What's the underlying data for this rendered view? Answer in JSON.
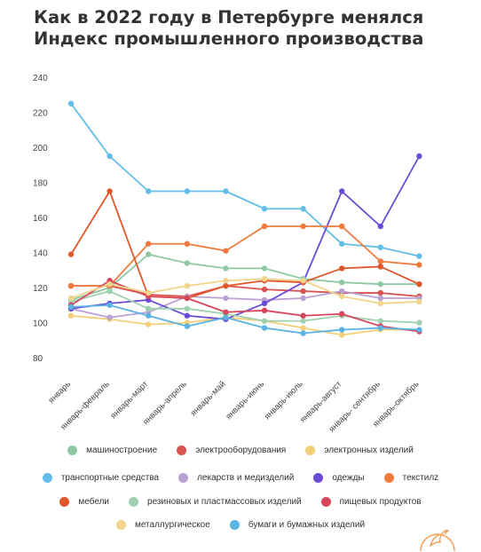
{
  "title": "Как в 2022 году в Петербурге менялся Индекс промышленного производства",
  "chart_data": {
    "type": "line",
    "categories": [
      "январь",
      "январь-февраль",
      "январь-март",
      "январь-апрель",
      "январь-май",
      "январь-июнь",
      "январь-июль",
      "январь-август",
      "январь- сентябрь",
      "январь-октябрь"
    ],
    "ylim": [
      80,
      240
    ],
    "yticks": [
      80,
      100,
      120,
      140,
      160,
      180,
      200,
      220,
      240
    ],
    "grid": false,
    "legend_position": "bottom",
    "series": [
      {
        "name": "машиностроение",
        "color": "#8fc9a3",
        "values": [
          118,
          125,
          144,
          139,
          136,
          136,
          130,
          128,
          127,
          127
        ]
      },
      {
        "name": "электрооборудования",
        "color": "#d9534f",
        "values": [
          126,
          126,
          121,
          120,
          126,
          124,
          123,
          122,
          122,
          120
        ]
      },
      {
        "name": "электронных изделий",
        "color": "#f3cf7a",
        "values": [
          109,
          107,
          104,
          105,
          108,
          106,
          102,
          98,
          101,
          101
        ]
      },
      {
        "name": "транспортные средства",
        "color": "#63bde6",
        "values": [
          230,
          200,
          180,
          180,
          180,
          170,
          170,
          150,
          148,
          143
        ]
      },
      {
        "name": "лекарств и медизделий",
        "color": "#b9a2d2",
        "values": [
          113,
          108,
          111,
          120,
          119,
          118,
          119,
          123,
          119,
          119
        ]
      },
      {
        "name": "одежды",
        "color": "#6a4bd6",
        "values": [
          113,
          116,
          118,
          109,
          107,
          116,
          128,
          180,
          160,
          200
        ]
      },
      {
        "name": "текстилz",
        "color": "#f07a3c",
        "values": [
          126,
          126,
          150,
          150,
          146,
          160,
          160,
          160,
          140,
          138
        ]
      },
      {
        "name": "мебели",
        "color": "#e2562c",
        "values": [
          144,
          180,
          120,
          119,
          126,
          129,
          128,
          136,
          137,
          127
        ]
      },
      {
        "name": "резиновых и пластмассовых изделий",
        "color": "#9fd0b0",
        "values": [
          117,
          123,
          113,
          113,
          110,
          106,
          106,
          109,
          106,
          105
        ]
      },
      {
        "name": "пищевых продуктов",
        "color": "#d7475c",
        "values": [
          115,
          129,
          120,
          119,
          111,
          112,
          109,
          110,
          103,
          100
        ]
      },
      {
        "name": "металлургическое",
        "color": "#f1d38a",
        "values": [
          119,
          127,
          122,
          126,
          129,
          130,
          129,
          120,
          116,
          117
        ]
      },
      {
        "name": "бумаги и бумажных изделий",
        "color": "#5ab3e3",
        "values": [
          114,
          115,
          109,
          103,
          108,
          102,
          99,
          101,
          102,
          101
        ]
      }
    ]
  }
}
